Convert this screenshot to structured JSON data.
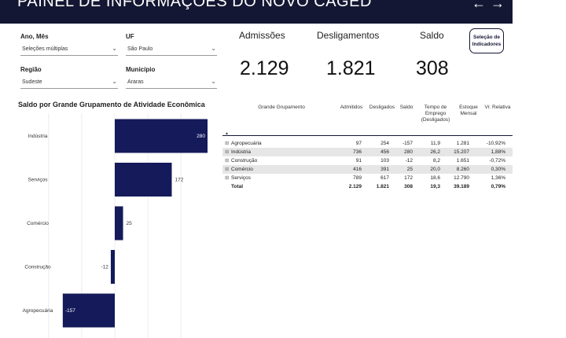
{
  "header": {
    "title": "PAINEL DE INFORMAÇÕES DO NOVO CAGED",
    "prev_arrow": "←",
    "next_arrow": "→"
  },
  "filters": [
    {
      "key": "ano_mes",
      "label": "Ano, Mês",
      "value": "Seleções múltiplas"
    },
    {
      "key": "uf",
      "label": "UF",
      "value": "São Paulo"
    },
    {
      "key": "regiao",
      "label": "Região",
      "value": "Sudeste"
    },
    {
      "key": "municipio",
      "label": "Município",
      "value": "Araras"
    }
  ],
  "icons": {
    "dropdown": "chevron-down-icon",
    "expand": "plus-box-icon",
    "sort": "sort-up-icon"
  },
  "kpis": {
    "admissoes": {
      "label": "Admissões",
      "value": "2.129"
    },
    "desligamentos": {
      "label": "Desligamentos",
      "value": "1.821"
    },
    "saldo": {
      "label": "Saldo",
      "value": "308"
    }
  },
  "selector_button": {
    "line1": "Seleção de",
    "line2": "Indicadores"
  },
  "colors": {
    "header_bg": "#141733",
    "bar": "#141a5a",
    "accent": "#141733"
  },
  "chart_data": {
    "type": "bar",
    "orientation": "horizontal",
    "title": "Saldo por Grande Grupamento de Atividade Econômica",
    "categories": [
      "Indústria",
      "Serviços",
      "Comércio",
      "Construção",
      "Agropecuária"
    ],
    "values": [
      280,
      172,
      25,
      -12,
      -157
    ],
    "value_labels": [
      "280",
      "172",
      "25",
      "-12",
      "-157"
    ],
    "xlim": [
      -200,
      300
    ],
    "grid": true
  },
  "table": {
    "columns": [
      "Grande Grupamento",
      "Admitidos",
      "Desligados",
      "Saldo",
      "Tempo de Emprego (Desligados)",
      "Estoque Mensal",
      "Vr. Relativa"
    ],
    "rows": [
      {
        "group": "Agropecuária",
        "admitidos": "97",
        "desligados": "254",
        "saldo": "-157",
        "tempo": "11,9",
        "estoque": "1.281",
        "vr": "-10,92%"
      },
      {
        "group": "Indústria",
        "admitidos": "736",
        "desligados": "456",
        "saldo": "280",
        "tempo": "26,2",
        "estoque": "15.207",
        "vr": "1,88%"
      },
      {
        "group": "Construção",
        "admitidos": "91",
        "desligados": "103",
        "saldo": "-12",
        "tempo": "8,2",
        "estoque": "1.651",
        "vr": "-0,72%"
      },
      {
        "group": "Comércio",
        "admitidos": "416",
        "desligados": "391",
        "saldo": "25",
        "tempo": "20,0",
        "estoque": "8.260",
        "vr": "0,30%"
      },
      {
        "group": "Serviços",
        "admitidos": "789",
        "desligados": "617",
        "saldo": "172",
        "tempo": "18,6",
        "estoque": "12.790",
        "vr": "1,36%"
      }
    ],
    "total": {
      "group": "Total",
      "admitidos": "2.129",
      "desligados": "1.821",
      "saldo": "308",
      "tempo": "19,3",
      "estoque": "39.189",
      "vr": "0,79%"
    }
  }
}
